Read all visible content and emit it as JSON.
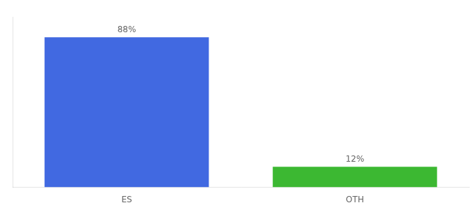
{
  "chart_data": {
    "type": "bar",
    "categories": [
      "ES",
      "OTH"
    ],
    "values": [
      88,
      12
    ],
    "value_labels": [
      "88%",
      "12%"
    ],
    "colors": [
      "#4169e1",
      "#3cb832"
    ],
    "ylim": [
      0,
      100
    ],
    "grid": false,
    "data_labels": true,
    "tick_labels": "x"
  }
}
